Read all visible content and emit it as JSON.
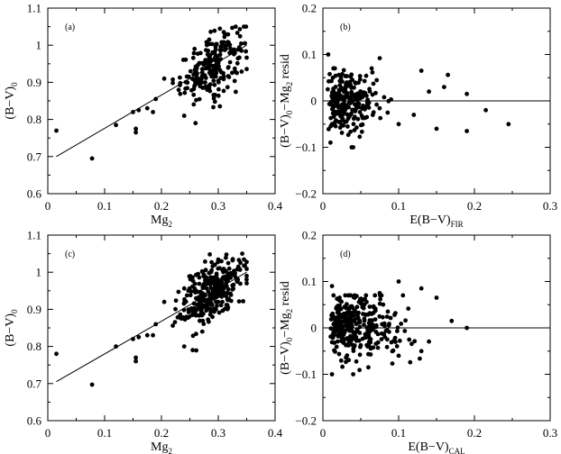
{
  "chart_data": [
    {
      "type": "scatter",
      "panel_label": "(a)",
      "xlabel": "Mg",
      "xlabel_sub": "2",
      "ylabel": "(B−V)",
      "ylabel_sub": "0",
      "xlim": [
        0,
        0.4
      ],
      "ylim": [
        0.6,
        1.1
      ],
      "xticks": [
        "0",
        "0.1",
        "0.2",
        "0.3",
        "0.4"
      ],
      "yticks": [
        "0.6",
        "0.7",
        "0.8",
        "0.9",
        "1",
        "1.1"
      ],
      "fit_line": [
        [
          0.015,
          0.7
        ],
        [
          0.35,
          1.0
        ]
      ],
      "cluster": {
        "x_mean": 0.29,
        "x_sd": 0.028,
        "x_min": 0.22,
        "x_max": 0.35,
        "y_sd": 0.04,
        "n": 220
      },
      "outliers": [
        [
          0.015,
          0.77
        ],
        [
          0.078,
          0.695
        ],
        [
          0.12,
          0.785
        ],
        [
          0.155,
          0.765
        ],
        [
          0.155,
          0.775
        ],
        [
          0.15,
          0.82
        ],
        [
          0.16,
          0.825
        ],
        [
          0.175,
          0.83
        ],
        [
          0.185,
          0.82
        ],
        [
          0.19,
          0.855
        ],
        [
          0.205,
          0.91
        ],
        [
          0.24,
          0.81
        ],
        [
          0.26,
          0.79
        ]
      ]
    },
    {
      "type": "scatter",
      "panel_label": "(b)",
      "xlabel": "E(B−V)",
      "xlabel_sub": "FIR",
      "ylabel": "(B−V)",
      "ylabel_sub": "0",
      "ylabel_rest": "−Mg",
      "ylabel_sub2": "2",
      "ylabel_end": " resid",
      "xlim": [
        0,
        0.3
      ],
      "ylim": [
        -0.2,
        0.2
      ],
      "xticks": [
        "0",
        "0.1",
        "0.2",
        "0.3"
      ],
      "yticks": [
        "−0.2",
        "−0.1",
        "0",
        "0.1",
        "0.2"
      ],
      "reference_y": 0,
      "cluster": {
        "x_min": 0.005,
        "x_max": 0.09,
        "x_mean": 0.03,
        "x_sd": 0.025,
        "y_sd": 0.035,
        "n": 240
      },
      "outliers": [
        [
          0.007,
          0.1
        ],
        [
          0.075,
          0.092
        ],
        [
          0.13,
          0.065
        ],
        [
          0.165,
          0.056
        ],
        [
          0.19,
          0.015
        ],
        [
          0.215,
          -0.02
        ],
        [
          0.245,
          -0.05
        ],
        [
          0.19,
          -0.065
        ],
        [
          0.04,
          -0.1
        ],
        [
          0.01,
          -0.09
        ],
        [
          0.1,
          -0.05
        ],
        [
          0.15,
          -0.06
        ],
        [
          0.16,
          0.03
        ],
        [
          0.12,
          -0.03
        ],
        [
          0.14,
          0.02
        ]
      ]
    },
    {
      "type": "scatter",
      "panel_label": "(c)",
      "xlabel": "Mg",
      "xlabel_sub": "2",
      "ylabel": "(B−V)",
      "ylabel_sub": "0",
      "xlim": [
        0,
        0.4
      ],
      "ylim": [
        0.6,
        1.1
      ],
      "xticks": [
        "0",
        "0.1",
        "0.2",
        "0.3",
        "0.4"
      ],
      "yticks": [
        "0.6",
        "0.7",
        "0.8",
        "0.9",
        "1",
        "1.1"
      ],
      "fit_line": [
        [
          0.015,
          0.705
        ],
        [
          0.35,
          1.0
        ]
      ],
      "cluster": {
        "x_mean": 0.29,
        "x_sd": 0.028,
        "x_min": 0.22,
        "x_max": 0.35,
        "y_sd": 0.04,
        "n": 320
      },
      "outliers": [
        [
          0.015,
          0.78
        ],
        [
          0.078,
          0.697
        ],
        [
          0.12,
          0.8
        ],
        [
          0.155,
          0.77
        ],
        [
          0.155,
          0.76
        ],
        [
          0.15,
          0.82
        ],
        [
          0.16,
          0.825
        ],
        [
          0.175,
          0.83
        ],
        [
          0.185,
          0.83
        ],
        [
          0.19,
          0.86
        ],
        [
          0.205,
          0.92
        ],
        [
          0.24,
          0.8
        ],
        [
          0.255,
          0.79
        ]
      ]
    },
    {
      "type": "scatter",
      "panel_label": "(d)",
      "xlabel": "E(B−V)",
      "xlabel_sub": "CAL",
      "ylabel": "(B−V)",
      "ylabel_sub": "0",
      "ylabel_rest": "−Mg",
      "ylabel_sub2": "2",
      "ylabel_end": " resid",
      "xlim": [
        0,
        0.3
      ],
      "ylim": [
        -0.2,
        0.2
      ],
      "xticks": [
        "0",
        "0.1",
        "0.2",
        "0.3"
      ],
      "yticks": [
        "−0.2",
        "−0.1",
        "0",
        "0.1",
        "0.2"
      ],
      "reference_y": 0,
      "cluster": {
        "x_min": 0.008,
        "x_max": 0.14,
        "x_mean": 0.045,
        "x_sd": 0.035,
        "y_sd": 0.035,
        "n": 330
      },
      "outliers": [
        [
          0.012,
          0.09
        ],
        [
          0.075,
          0.075
        ],
        [
          0.1,
          0.1
        ],
        [
          0.13,
          0.085
        ],
        [
          0.15,
          0.065
        ],
        [
          0.17,
          0.015
        ],
        [
          0.19,
          0.0
        ],
        [
          0.012,
          -0.1
        ],
        [
          0.04,
          -0.1
        ],
        [
          0.06,
          -0.085
        ],
        [
          0.13,
          -0.05
        ],
        [
          0.1,
          -0.06
        ]
      ]
    }
  ]
}
